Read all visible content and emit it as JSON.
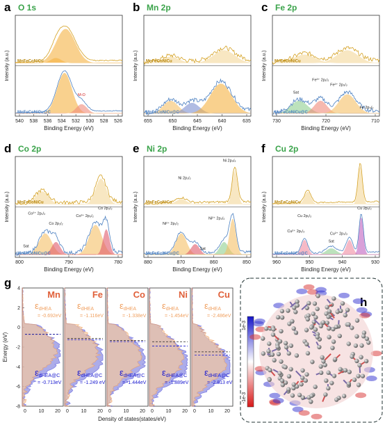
{
  "panels": [
    {
      "letter": "a",
      "title": "O 1s",
      "upper_label": "MnFeCoNiCu",
      "lower_label": "MnFeCoNiCu@C",
      "x_label": "Binding Energy (eV)",
      "y_label": "Intensity (a.u.)",
      "xticks": [
        540,
        538,
        536,
        534,
        532,
        530,
        528,
        526
      ],
      "annotations": [
        "M-O"
      ]
    },
    {
      "letter": "b",
      "title": "Mn 2p",
      "upper_label": "MnFeCoNiCu",
      "lower_label": "MnFeCoNiCu@C",
      "x_label": "Binding Energy (eV)",
      "y_label": "Intensity (a.u.)",
      "xticks": [
        655,
        650,
        645,
        640,
        635
      ],
      "annotations": []
    },
    {
      "letter": "c",
      "title": "Fe 2p",
      "upper_label": "MnFeCoNiCu",
      "lower_label": "MnFeCoNiCu@C",
      "x_label": "Binding Energy (eV)",
      "y_label": "Intensity (a.u.)",
      "xticks": [
        730,
        720,
        710
      ],
      "annotations": [
        "Sat",
        "Fe³⁺ 2p₁/₂",
        "Fe²⁺ 2p₃/₂",
        "Fe 2p₃/₂"
      ]
    },
    {
      "letter": "d",
      "title": "Co 2p",
      "upper_label": "MnFeCoNiCu",
      "lower_label": "MnFeCoNiCu@C",
      "x_label": "Binding Energy (eV)",
      "y_label": "Intensity (a.u.)",
      "xticks": [
        800,
        790,
        780
      ],
      "annotations": [
        "Co²⁺ 2p₁/₂",
        "Co 2p₁/₂",
        "Co³⁺ 2p₃/₂",
        "Co 2p₃/₂",
        "Sat"
      ]
    },
    {
      "letter": "e",
      "title": "Ni 2p",
      "upper_label": "MnFeCoNiCu",
      "lower_label": "MnFeCoNiCu@C",
      "x_label": "Binding Energy (eV)",
      "y_label": "Intensity (a.u.)",
      "xticks": [
        880,
        870,
        860,
        850
      ],
      "annotations": [
        "Ni 2p₃/₂",
        "Ni 2p₁/₂",
        "Ni²⁺ 2p₁/₂",
        "Ni²⁺ 2p₃/₂",
        "Sat"
      ]
    },
    {
      "letter": "f",
      "title": "Cu 2p",
      "upper_label": "MnFeCoNiCu",
      "lower_label": "MnFeCoNiCu@C",
      "x_label": "Binding Energy (eV)",
      "y_label": "Intensity (a.u.)",
      "xticks": [
        960,
        950,
        940,
        930
      ],
      "annotations": [
        "Cu 2p₁/₂",
        "Cu 2p₃/₂",
        "Cu²⁺ 2p₁/₂",
        "Cu²⁺ 2p₃/₂",
        "Sat"
      ]
    }
  ],
  "dos": {
    "letter": "g",
    "y_label": "Energy (eV)",
    "x_label": "Density of states(states/eV)",
    "yticks": [
      4,
      2,
      0,
      -2,
      -4,
      -6,
      -8
    ],
    "xticks": [
      0,
      10,
      20
    ],
    "symbol": "ε",
    "sub_hea": "dHEA",
    "sub_hea_c": "dHEA@C",
    "elements": [
      {
        "name": "Mn",
        "hea": {
          "value": -0.692,
          "label": "= -0.692eV"
        },
        "hea_c": {
          "value": -0.713,
          "label": "= -0.713eV"
        }
      },
      {
        "name": "Fe",
        "hea": {
          "value": -1.116,
          "label": "= -1.116eV"
        },
        "hea_c": {
          "value": -1.249,
          "label": "= -1.249 eV"
        }
      },
      {
        "name": "Co",
        "hea": {
          "value": -1.338,
          "label": "= -1.338eV"
        },
        "hea_c": {
          "value": -1.444,
          "label": "= -1.444eV"
        }
      },
      {
        "name": "Ni",
        "hea": {
          "value": -1.454,
          "label": "= -1.454eV"
        },
        "hea_c": {
          "value": -1.889,
          "label": "= -1.889eV"
        }
      },
      {
        "name": "Cu",
        "hea": {
          "value": -2.486,
          "label": "= -2.486eV"
        },
        "hea_c": {
          "value": -2.813,
          "label": "= -2.813 eV"
        }
      }
    ]
  },
  "charge": {
    "letter": "h",
    "cbar_max": "1e-3",
    "cbar_min": "-1e-3"
  }
}
